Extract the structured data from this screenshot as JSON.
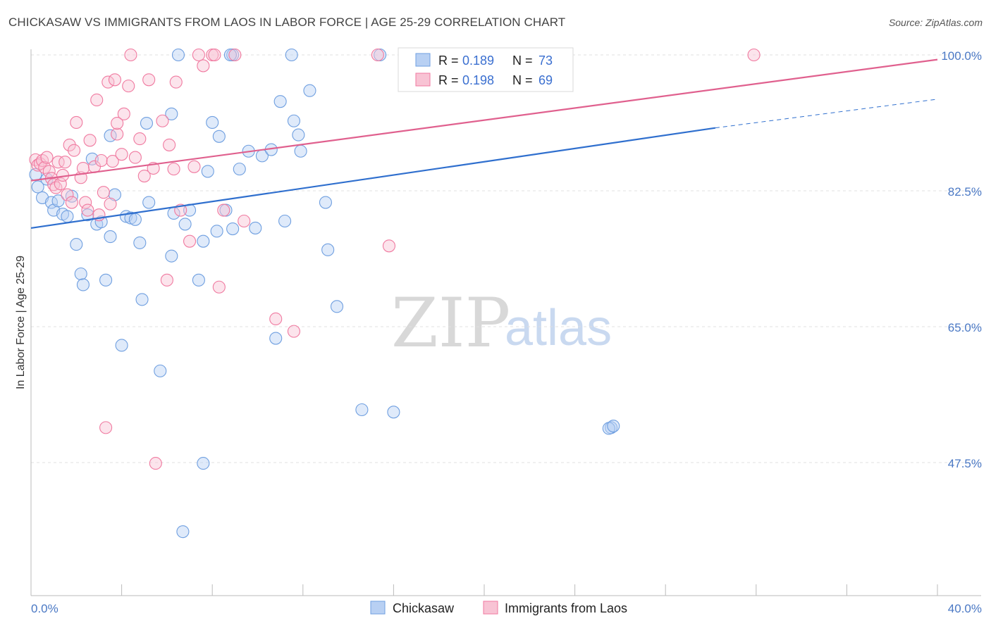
{
  "header": {
    "title": "CHICKASAW VS IMMIGRANTS FROM LAOS IN LABOR FORCE | AGE 25-29 CORRELATION CHART",
    "source": "Source: ZipAtlas.com"
  },
  "watermark": {
    "zip": "ZIP",
    "atlas": "atlas"
  },
  "colors": {
    "blue": "#6f9fe0",
    "blue_line": "#2f6fce",
    "pink": "#f07aa0",
    "pink_line": "#e0608e",
    "blue_fill": "#b8d0f3",
    "pink_fill": "#f8c3d4",
    "grid": "#e0e0e0",
    "tick_text": "#4a78c4"
  },
  "legend": {
    "rows": [
      {
        "r_label": "R = ",
        "r_value": "0.189",
        "n_label": "N = ",
        "n_value": "73",
        "color": "blue"
      },
      {
        "r_label": "R = ",
        "r_value": "0.198",
        "n_label": "N = ",
        "n_value": "69",
        "color": "pink"
      }
    ]
  },
  "bottom_legend": [
    "Chickasaw",
    "Immigrants from Laos"
  ],
  "chart_data": {
    "type": "scatter",
    "title": "CHICKASAW VS IMMIGRANTS FROM LAOS IN LABOR FORCE | AGE 25-29 CORRELATION CHART",
    "xlabel": "",
    "ylabel": "In Labor Force | Age 25-29",
    "xlim": [
      0,
      40
    ],
    "ylim": [
      35,
      102
    ],
    "x_tick_labels": [
      "0.0%",
      "40.0%"
    ],
    "y_ticks": [
      47.5,
      65.0,
      82.5,
      100.0
    ],
    "y_tick_labels": [
      "47.5%",
      "65.0%",
      "82.5%",
      "100.0%"
    ],
    "grid": true,
    "legend_position": "top-center",
    "series": [
      {
        "name": "Chickasaw",
        "color": "#6f9fe0",
        "trend": {
          "x": [
            0,
            30.2
          ],
          "y": [
            77.7,
            90.6
          ],
          "dashed_to": [
            40,
            94.3
          ]
        },
        "points": [
          [
            0.2,
            84.6
          ],
          [
            0.3,
            83.0
          ],
          [
            0.5,
            81.6
          ],
          [
            0.7,
            84.0
          ],
          [
            0.9,
            81.0
          ],
          [
            1.0,
            80.0
          ],
          [
            1.2,
            81.2
          ],
          [
            1.4,
            79.5
          ],
          [
            1.6,
            79.2
          ],
          [
            1.8,
            81.8
          ],
          [
            2.0,
            75.6
          ],
          [
            2.2,
            71.8
          ],
          [
            2.3,
            70.4
          ],
          [
            2.5,
            79.4
          ],
          [
            2.7,
            86.6
          ],
          [
            2.9,
            78.2
          ],
          [
            3.1,
            78.5
          ],
          [
            3.3,
            71.0
          ],
          [
            3.5,
            76.6
          ],
          [
            3.7,
            82.0
          ],
          [
            3.5,
            89.6
          ],
          [
            4.0,
            62.6
          ],
          [
            4.2,
            79.2
          ],
          [
            4.4,
            79.0
          ],
          [
            4.6,
            78.8
          ],
          [
            4.8,
            75.8
          ],
          [
            4.9,
            68.5
          ],
          [
            5.1,
            91.2
          ],
          [
            5.2,
            81.0
          ],
          [
            5.7,
            59.3
          ],
          [
            6.2,
            74.1
          ],
          [
            6.2,
            92.4
          ],
          [
            6.3,
            79.6
          ],
          [
            6.5,
            100.0
          ],
          [
            6.8,
            78.2
          ],
          [
            6.7,
            38.6
          ],
          [
            7.0,
            80.0
          ],
          [
            7.4,
            71.0
          ],
          [
            7.6,
            76.0
          ],
          [
            7.6,
            47.4
          ],
          [
            7.8,
            85.0
          ],
          [
            8.0,
            91.3
          ],
          [
            8.3,
            89.5
          ],
          [
            8.2,
            77.3
          ],
          [
            8.6,
            80.0
          ],
          [
            8.9,
            100.0
          ],
          [
            8.8,
            100.0
          ],
          [
            8.9,
            77.6
          ],
          [
            9.2,
            85.3
          ],
          [
            9.6,
            87.6
          ],
          [
            9.9,
            77.7
          ],
          [
            10.2,
            87.0
          ],
          [
            10.6,
            87.8
          ],
          [
            10.8,
            63.5
          ],
          [
            11.0,
            94.0
          ],
          [
            11.2,
            78.6
          ],
          [
            11.5,
            100.0
          ],
          [
            11.6,
            91.5
          ],
          [
            11.8,
            89.7
          ],
          [
            11.9,
            87.6
          ],
          [
            12.3,
            95.4
          ],
          [
            13.0,
            81.0
          ],
          [
            13.1,
            74.9
          ],
          [
            13.5,
            67.6
          ],
          [
            14.6,
            54.3
          ],
          [
            15.4,
            100.0
          ],
          [
            16.0,
            54.0
          ],
          [
            16.6,
            100.0
          ],
          [
            17.8,
            100.0
          ],
          [
            19.5,
            100.0
          ],
          [
            25.6,
            52.0
          ],
          [
            25.5,
            51.9
          ],
          [
            25.7,
            52.2
          ]
        ]
      },
      {
        "name": "Immigrants from Laos",
        "color": "#f07aa0",
        "trend": {
          "x": [
            0,
            40
          ],
          "y": [
            83.8,
            99.4
          ]
        },
        "points": [
          [
            0.2,
            86.5
          ],
          [
            0.3,
            85.8
          ],
          [
            0.4,
            86.0
          ],
          [
            0.5,
            86.4
          ],
          [
            0.6,
            85.5
          ],
          [
            0.7,
            86.8
          ],
          [
            0.8,
            85.0
          ],
          [
            0.9,
            84.1
          ],
          [
            1.0,
            83.3
          ],
          [
            1.1,
            82.9
          ],
          [
            1.2,
            86.2
          ],
          [
            1.3,
            83.4
          ],
          [
            1.4,
            84.5
          ],
          [
            1.5,
            86.2
          ],
          [
            1.6,
            82.0
          ],
          [
            1.7,
            88.4
          ],
          [
            1.8,
            81.0
          ],
          [
            1.9,
            87.7
          ],
          [
            2.0,
            91.3
          ],
          [
            2.2,
            84.2
          ],
          [
            2.3,
            85.4
          ],
          [
            2.4,
            81.0
          ],
          [
            2.5,
            80.0
          ],
          [
            2.6,
            89.0
          ],
          [
            2.8,
            85.6
          ],
          [
            2.9,
            94.2
          ],
          [
            3.0,
            79.4
          ],
          [
            3.1,
            86.4
          ],
          [
            3.2,
            82.3
          ],
          [
            3.3,
            52.0
          ],
          [
            3.4,
            96.5
          ],
          [
            3.5,
            80.8
          ],
          [
            3.6,
            86.3
          ],
          [
            3.7,
            96.8
          ],
          [
            3.8,
            89.8
          ],
          [
            4.0,
            87.2
          ],
          [
            4.1,
            92.4
          ],
          [
            4.3,
            96.0
          ],
          [
            4.4,
            100.0
          ],
          [
            4.6,
            86.8
          ],
          [
            4.8,
            89.2
          ],
          [
            5.0,
            84.4
          ],
          [
            5.2,
            96.8
          ],
          [
            5.4,
            85.4
          ],
          [
            5.5,
            47.4
          ],
          [
            5.8,
            91.5
          ],
          [
            6.0,
            71.0
          ],
          [
            6.1,
            88.4
          ],
          [
            6.3,
            85.3
          ],
          [
            6.4,
            96.5
          ],
          [
            6.6,
            80.0
          ],
          [
            7.0,
            76.0
          ],
          [
            7.2,
            85.6
          ],
          [
            7.4,
            100.0
          ],
          [
            7.6,
            98.6
          ],
          [
            8.0,
            100.0
          ],
          [
            8.1,
            100.0
          ],
          [
            8.3,
            70.1
          ],
          [
            8.5,
            80.0
          ],
          [
            9.0,
            100.0
          ],
          [
            9.4,
            78.6
          ],
          [
            10.8,
            66.0
          ],
          [
            11.6,
            64.4
          ],
          [
            15.3,
            100.0
          ],
          [
            15.8,
            75.4
          ],
          [
            17.0,
            100.0
          ],
          [
            17.2,
            100.0
          ],
          [
            31.9,
            100.0
          ],
          [
            3.8,
            91.2
          ]
        ]
      }
    ]
  }
}
